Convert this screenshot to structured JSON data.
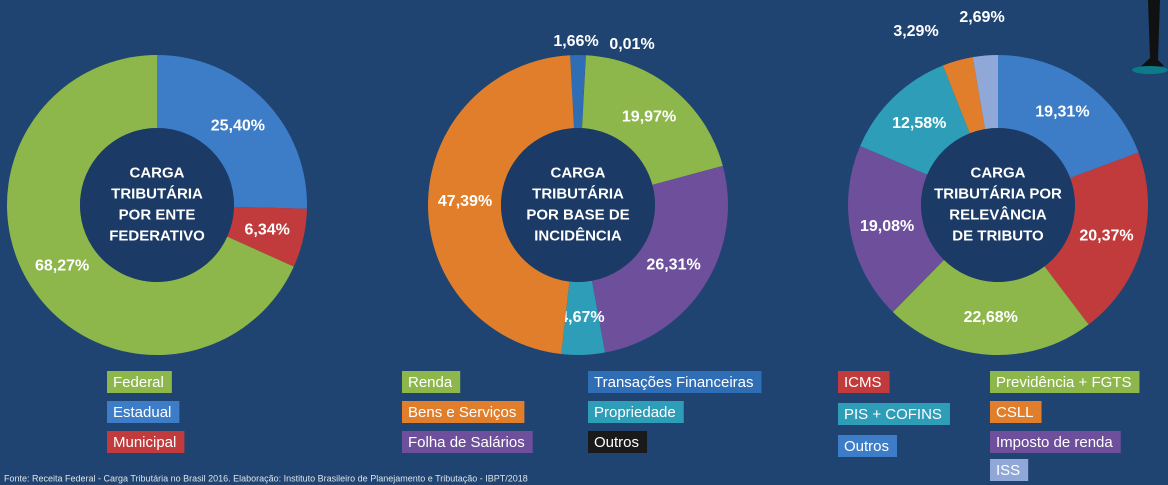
{
  "charts": [
    {
      "type": "pie",
      "title": [
        "CARGA",
        "TRIBUTÁRIA",
        "POR ENTE",
        "FEDERATIVO"
      ],
      "categories": [
        "Federal",
        "Estadual",
        "Municipal"
      ],
      "colors": [
        "#8db74a",
        "#3d7cc6",
        "#c23b3c"
      ],
      "values": [
        68.27,
        25.4,
        6.34
      ],
      "value_labels": [
        "68,27%",
        "25,40%",
        "6,34%"
      ]
    },
    {
      "type": "pie",
      "title": [
        "CARGA",
        "TRIBUTÁRIA",
        "POR BASE DE",
        "INCIDÊNCIA"
      ],
      "categories": [
        "Renda",
        "Bens e Serviços",
        "Folha de Salários",
        "Transações Financeiras",
        "Propriedade",
        "Outros"
      ],
      "colors": [
        "#8db74a",
        "#e07e2c",
        "#6d4f9c",
        "#2f6db5",
        "#2e9db8",
        "#1a1a1a"
      ],
      "values": [
        19.97,
        47.39,
        26.31,
        1.66,
        4.67,
        0.01
      ],
      "value_labels": [
        "19,97%",
        "47,39%",
        "26,31%",
        "1,66%",
        "4,67%",
        "0,01%"
      ]
    },
    {
      "type": "pie",
      "title": [
        "CARGA",
        "TRIBUTÁRIA POR",
        "RELEVÂNCIA",
        "DE TRIBUTO"
      ],
      "categories": [
        "ICMS",
        "PIS + COFINS",
        "Outros",
        "Previdência + FGTS",
        "CSLL",
        "Imposto de renda",
        "ISS"
      ],
      "colors": [
        "#c23b3c",
        "#2e9db8",
        "#3d7cc6",
        "#8db74a",
        "#e07e2c",
        "#6d4f9c",
        "#8fa8d8"
      ],
      "values": [
        20.37,
        12.58,
        19.31,
        22.68,
        3.29,
        19.08,
        2.69
      ],
      "value_labels": [
        "20,37%",
        "12,58%",
        "19,31%",
        "22,68%",
        "3,29%",
        "19,08%",
        "2,69%"
      ]
    }
  ],
  "footer": "Fonte: Receita Federal - Carga Tributária no Brasil 2016. Elaboração: Instituto Brasileiro de Planejamento e Tributação - IBPT/2018"
}
